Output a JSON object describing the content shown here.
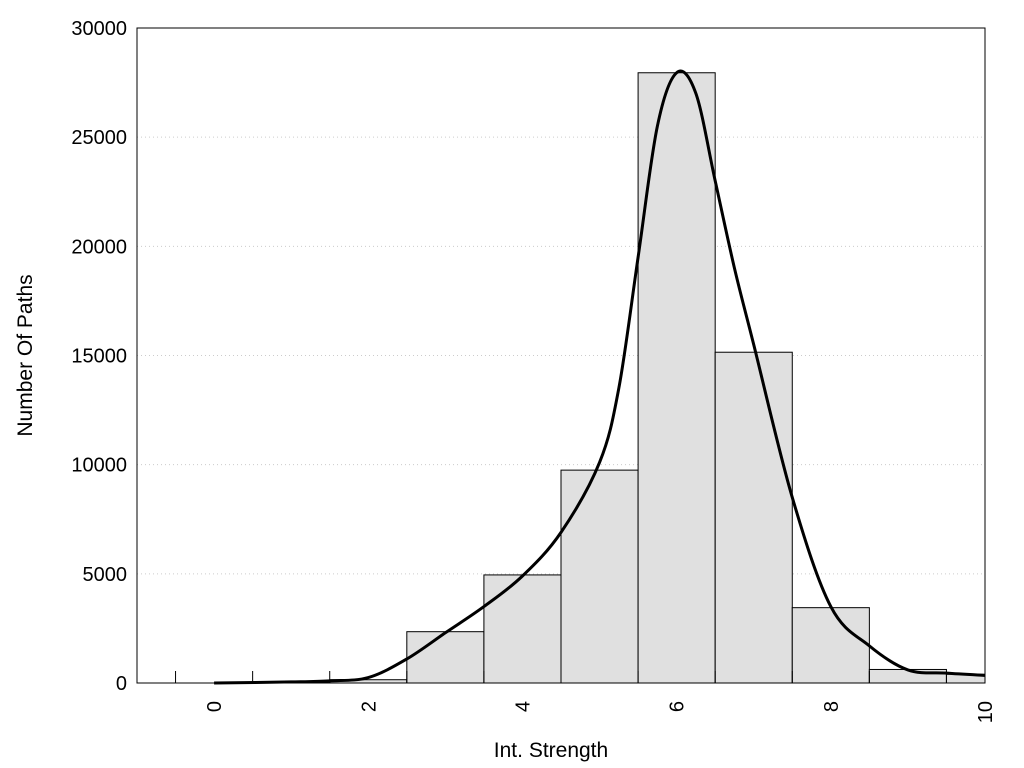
{
  "chart_data": {
    "type": "bar",
    "title": "",
    "xlabel": "Int. Strength",
    "ylabel": "Number Of Paths",
    "xlim": [
      -1,
      10
    ],
    "ylim": [
      0,
      30000
    ],
    "x_ticks": [
      "0",
      "2",
      "4",
      "6",
      "8",
      "10"
    ],
    "y_ticks": [
      "0",
      "5000",
      "10000",
      "15000",
      "20000",
      "25000",
      "30000"
    ],
    "grid": "horizontal dotted",
    "legend": "none",
    "bin_width": 1,
    "bins": [
      {
        "center": 0,
        "value": 0
      },
      {
        "center": 1,
        "value": 20
      },
      {
        "center": 2,
        "value": 150
      },
      {
        "center": 3,
        "value": 2350
      },
      {
        "center": 4,
        "value": 4950
      },
      {
        "center": 5,
        "value": 9750
      },
      {
        "center": 6,
        "value": 27950
      },
      {
        "center": 7,
        "value": 15150
      },
      {
        "center": 8,
        "value": 3450
      },
      {
        "center": 9,
        "value": 620
      },
      {
        "center": 10,
        "value": 400
      }
    ],
    "density_curve": {
      "x": [
        0,
        1,
        1.5,
        2,
        2.5,
        3,
        3.5,
        4,
        4.5,
        5,
        5.25,
        5.5,
        5.75,
        6,
        6.25,
        6.5,
        6.75,
        7,
        7.5,
        8,
        8.5,
        9,
        9.5,
        10
      ],
      "y": [
        0,
        50,
        100,
        250,
        1100,
        2300,
        3500,
        4900,
        6900,
        10100,
        13500,
        19500,
        25500,
        27950,
        27000,
        23000,
        19000,
        15500,
        8500,
        3500,
        1700,
        600,
        450,
        350
      ]
    },
    "colors": {
      "bar_fill": "#e0e0e0",
      "bar_stroke": "#000000",
      "curve": "#000000",
      "grid": "#cccccc"
    }
  }
}
